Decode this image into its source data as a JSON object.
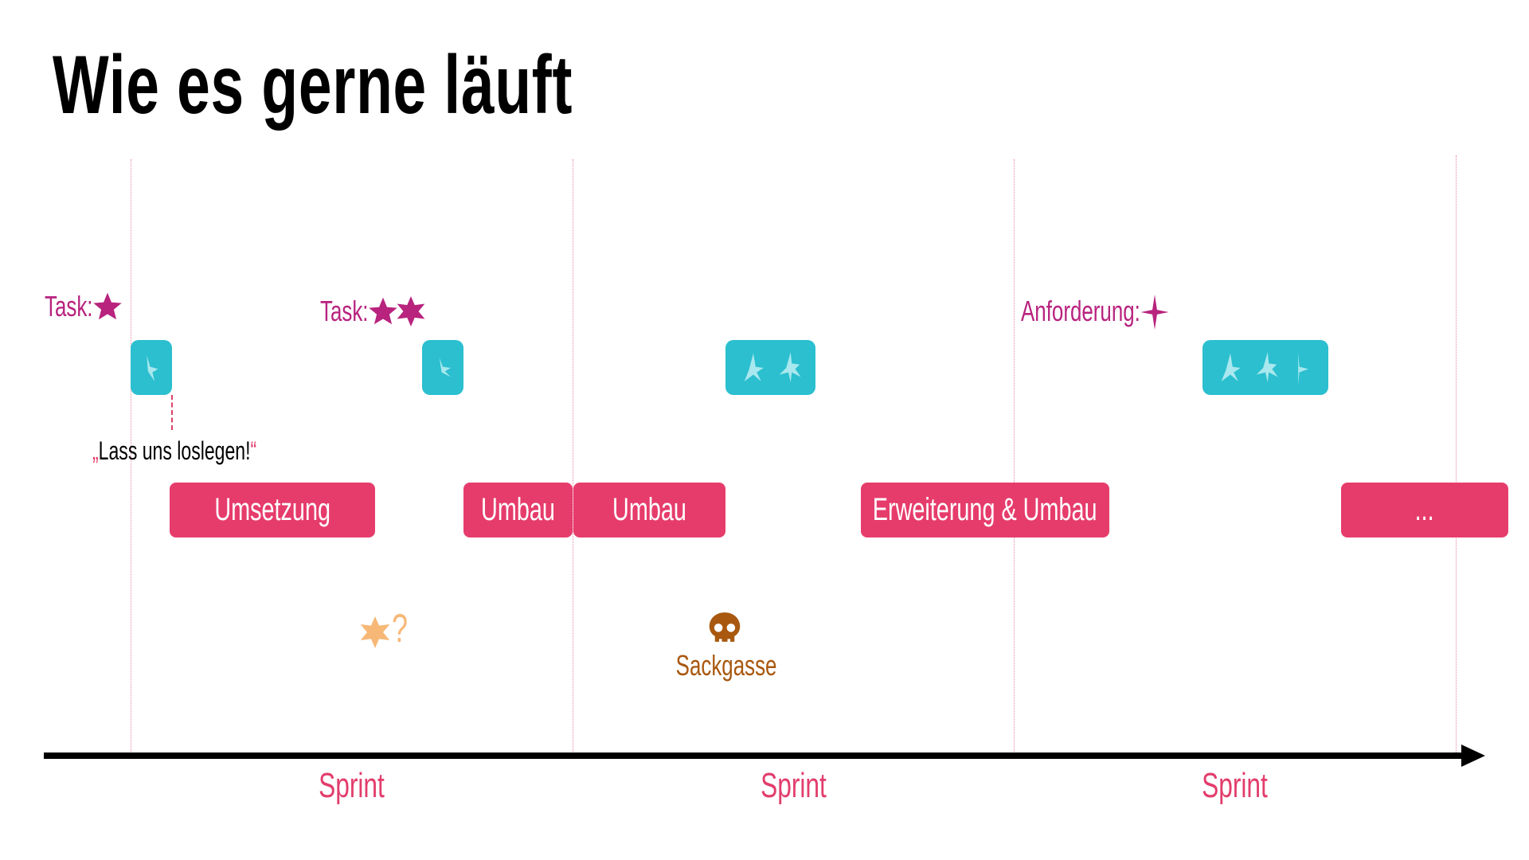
{
  "title": "Wie es gerne läuft",
  "sprints": [
    "Sprint",
    "Sprint",
    "Sprint"
  ],
  "labels": {
    "task1": "Task:",
    "task2": "Task:",
    "requirement": "Anforderung:"
  },
  "quote": {
    "open": "„",
    "text": "Lass uns loslegen!",
    "close": "“"
  },
  "bars": [
    "Umsetzung",
    "Umbau",
    "Umbau",
    "Erweiterung & Umbau",
    "..."
  ],
  "question": "?",
  "dead_end": "Sackgasse",
  "colors": {
    "bar": "#e63c6c",
    "label": "#b8237e",
    "task_box": "#2bbfcf",
    "star_light": "#a8e8ee",
    "orange_star": "#f7b877",
    "skull": "#a8580f"
  }
}
